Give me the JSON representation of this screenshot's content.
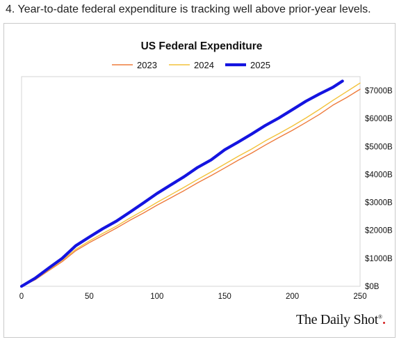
{
  "caption": "4. Year-to-date federal expenditure is tracking well above prior-year levels.",
  "source_brand": "The Daily Shot",
  "source_brand_mark": "®",
  "chart_data": {
    "type": "line",
    "title": "US Federal Expenditure",
    "xlabel": "",
    "ylabel": "",
    "xlim": [
      0,
      250
    ],
    "ylim": [
      0,
      7500
    ],
    "x_ticks": [
      0,
      50,
      100,
      150,
      200,
      250
    ],
    "x_tick_labels": [
      "0",
      "50",
      "100",
      "150",
      "200",
      "250"
    ],
    "y_ticks": [
      0,
      1000,
      2000,
      3000,
      4000,
      5000,
      6000,
      7000
    ],
    "y_tick_labels": [
      "$0B",
      "$1000B",
      "$2000B",
      "$3000B",
      "$4000B",
      "$5000B",
      "$6000B",
      "$7000B"
    ],
    "y_axis_side": "right",
    "grid": false,
    "legend_position": "top",
    "series": [
      {
        "name": "2023",
        "color": "#ee7b3c",
        "x": [
          0,
          10,
          20,
          30,
          40,
          50,
          60,
          70,
          80,
          90,
          100,
          110,
          120,
          130,
          140,
          150,
          160,
          170,
          180,
          190,
          200,
          210,
          220,
          230,
          240,
          250
        ],
        "y": [
          0,
          230,
          560,
          880,
          1270,
          1560,
          1820,
          2080,
          2360,
          2620,
          2900,
          3160,
          3420,
          3700,
          3960,
          4230,
          4510,
          4770,
          5050,
          5320,
          5580,
          5860,
          6150,
          6480,
          6750,
          7050
        ]
      },
      {
        "name": "2024",
        "color": "#f3c23a",
        "x": [
          0,
          10,
          20,
          30,
          40,
          50,
          60,
          70,
          80,
          90,
          100,
          110,
          120,
          130,
          140,
          150,
          160,
          170,
          180,
          190,
          200,
          210,
          220,
          230,
          240,
          250
        ],
        "y": [
          0,
          250,
          590,
          930,
          1320,
          1620,
          1890,
          2150,
          2440,
          2710,
          3000,
          3270,
          3540,
          3820,
          4090,
          4370,
          4650,
          4910,
          5200,
          5460,
          5730,
          6020,
          6330,
          6650,
          6960,
          7270
        ]
      },
      {
        "name": "2025",
        "color": "#1414e0",
        "x": [
          0,
          10,
          20,
          30,
          40,
          50,
          60,
          70,
          80,
          90,
          100,
          110,
          120,
          130,
          140,
          150,
          160,
          170,
          180,
          190,
          200,
          210,
          220,
          230,
          237
        ],
        "y": [
          0,
          290,
          650,
          1000,
          1450,
          1760,
          2060,
          2330,
          2650,
          2980,
          3320,
          3620,
          3920,
          4250,
          4520,
          4880,
          5160,
          5450,
          5750,
          6020,
          6320,
          6620,
          6880,
          7120,
          7340
        ]
      }
    ]
  }
}
